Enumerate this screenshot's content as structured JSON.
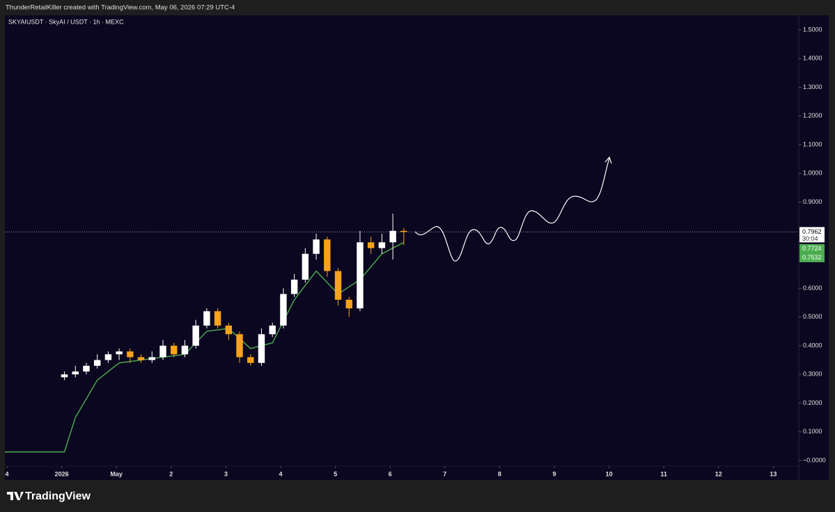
{
  "header": {
    "text": "ThunderRetailKiller created with TradingView.com, May 06, 2026 07:29 UTC-4"
  },
  "footer": {
    "brand": "TradingView"
  },
  "chart_data": {
    "type": "candlestick",
    "title": "SKYAIUSDT · SkyAI / USDT · 1h · MEXC",
    "x": [
      1.05,
      1.25,
      1.45,
      1.65,
      1.85,
      2.05,
      2.25,
      2.45,
      2.65,
      2.85,
      3.05,
      3.25,
      3.45,
      3.65,
      3.85,
      4.05,
      4.25,
      4.45,
      4.65,
      4.85,
      5.05,
      5.25,
      5.45,
      5.65,
      5.85,
      6.05,
      6.25,
      6.45,
      6.65,
      6.85,
      7.05,
      7.25
    ],
    "open": [
      0.29,
      0.3,
      0.31,
      0.33,
      0.35,
      0.37,
      0.38,
      0.36,
      0.35,
      0.36,
      0.4,
      0.37,
      0.4,
      0.47,
      0.52,
      0.47,
      0.44,
      0.36,
      0.34,
      0.44,
      0.47,
      0.58,
      0.63,
      0.72,
      0.77,
      0.66,
      0.56,
      0.53,
      0.76,
      0.74,
      0.76,
      0.8
    ],
    "high": [
      0.31,
      0.33,
      0.34,
      0.37,
      0.38,
      0.39,
      0.39,
      0.37,
      0.38,
      0.42,
      0.41,
      0.42,
      0.49,
      0.53,
      0.53,
      0.48,
      0.45,
      0.37,
      0.46,
      0.48,
      0.6,
      0.65,
      0.74,
      0.79,
      0.78,
      0.67,
      0.57,
      0.8,
      0.78,
      0.79,
      0.86,
      0.81
    ],
    "low": [
      0.28,
      0.29,
      0.3,
      0.32,
      0.34,
      0.35,
      0.34,
      0.34,
      0.34,
      0.35,
      0.36,
      0.36,
      0.39,
      0.46,
      0.46,
      0.42,
      0.34,
      0.33,
      0.33,
      0.43,
      0.46,
      0.57,
      0.62,
      0.7,
      0.64,
      0.54,
      0.5,
      0.52,
      0.72,
      0.72,
      0.7,
      0.75
    ],
    "close": [
      0.3,
      0.31,
      0.33,
      0.35,
      0.37,
      0.38,
      0.36,
      0.35,
      0.36,
      0.4,
      0.37,
      0.4,
      0.47,
      0.52,
      0.47,
      0.44,
      0.36,
      0.34,
      0.44,
      0.47,
      0.58,
      0.63,
      0.72,
      0.77,
      0.66,
      0.56,
      0.53,
      0.76,
      0.74,
      0.76,
      0.8,
      0.7962
    ],
    "up_color": "#ffffff",
    "down_color": "#f7a21b",
    "moving_average": {
      "color": "#4caf50",
      "x": [
        -0.038,
        1.05,
        1.25,
        1.65,
        2.05,
        2.45,
        2.85,
        3.25,
        3.65,
        4.05,
        4.45,
        4.85,
        5.25,
        5.65,
        6.05,
        6.45,
        6.85,
        7.25
      ],
      "values": [
        0.03,
        0.03,
        0.15,
        0.28,
        0.34,
        0.35,
        0.36,
        0.37,
        0.45,
        0.46,
        0.39,
        0.41,
        0.56,
        0.66,
        0.58,
        0.63,
        0.72,
        0.76
      ]
    },
    "last_price": 0.7962,
    "countdown": "30:04",
    "ma_price_labels": [
      0.7724,
      0.7532
    ],
    "ma_label_color": "#4caf50",
    "xlim": [
      -0.038,
      14.466
    ],
    "xticks": [
      {
        "value": 0,
        "label": "4"
      },
      {
        "value": 1,
        "label": "2026"
      },
      {
        "value": 2,
        "label": "May"
      },
      {
        "value": 3,
        "label": "2"
      },
      {
        "value": 4,
        "label": "3"
      },
      {
        "value": 5,
        "label": "4"
      },
      {
        "value": 6,
        "label": "5"
      },
      {
        "value": 7,
        "label": "6"
      },
      {
        "value": 8,
        "label": "7"
      },
      {
        "value": 9,
        "label": "8"
      },
      {
        "value": 10,
        "label": "9"
      },
      {
        "value": 11,
        "label": "10"
      },
      {
        "value": 12,
        "label": "11"
      },
      {
        "value": 13,
        "label": "12"
      },
      {
        "value": 14,
        "label": "13"
      }
    ],
    "ylim": [
      -0.0194,
      1.5508
    ],
    "yticks": [
      {
        "value": 1.5,
        "label": "1.5000"
      },
      {
        "value": 1.4,
        "label": "1.4000"
      },
      {
        "value": 1.3,
        "label": "1.3000"
      },
      {
        "value": 1.2,
        "label": "1.2000"
      },
      {
        "value": 1.1,
        "label": "1.1000"
      },
      {
        "value": 1.0,
        "label": "1.0000"
      },
      {
        "value": 0.9,
        "label": "0.9000"
      },
      {
        "value": 0.6,
        "label": "0.6000"
      },
      {
        "value": 0.5,
        "label": "0.5000"
      },
      {
        "value": 0.4,
        "label": "0.4000"
      },
      {
        "value": 0.3,
        "label": "0.3000"
      },
      {
        "value": 0.2,
        "label": "0.2000"
      },
      {
        "value": 0.1,
        "label": "0.1000"
      },
      {
        "value": 0,
        "label": "−0.0000"
      }
    ],
    "grid": false
  }
}
